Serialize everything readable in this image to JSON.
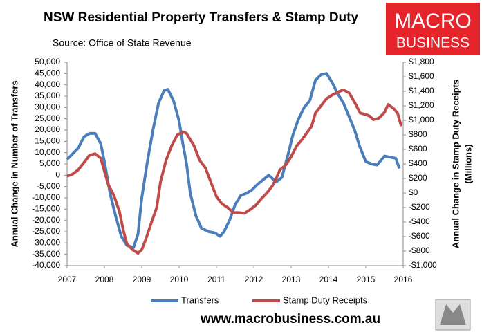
{
  "chart_data": {
    "type": "line",
    "title": "NSW Residential Property Transfers & Stamp Duty",
    "subtitle": "Source: Office of State Revenue",
    "y_label": "Annual Change in Number of Transfers",
    "y2_label": [
      "Annual Change in Stamp Duty Receipts",
      "(Millions)"
    ],
    "logo": [
      "MACRO",
      "BUSINESS"
    ],
    "footer": "www.macrobusiness.com.au",
    "xlim": [
      2007,
      2016
    ],
    "xticks": [
      2007,
      2008,
      2009,
      2010,
      2011,
      2012,
      2013,
      2014,
      2015,
      2016
    ],
    "ylim": [
      -40000,
      50000
    ],
    "yticks": [
      {
        "value": -40000,
        "label": "-40,000"
      },
      {
        "value": -35000,
        "label": "-35,000"
      },
      {
        "value": -30000,
        "label": "-30,000"
      },
      {
        "value": -25000,
        "label": "-25,000"
      },
      {
        "value": -20000,
        "label": "-20,000"
      },
      {
        "value": -15000,
        "label": "-15,000"
      },
      {
        "value": -10000,
        "label": "-10,000"
      },
      {
        "value": -5000,
        "label": "-5,000"
      },
      0,
      {
        "value": 5000,
        "label": "5,000"
      },
      {
        "value": 10000,
        "label": "10,000"
      },
      {
        "value": 15000,
        "label": "15,000"
      },
      {
        "value": 20000,
        "label": "20,000"
      },
      {
        "value": 25000,
        "label": "25,000"
      },
      {
        "value": 30000,
        "label": "30,000"
      },
      {
        "value": 35000,
        "label": "35,000"
      },
      {
        "value": 40000,
        "label": "40,000"
      },
      {
        "value": 45000,
        "label": "45,000"
      },
      {
        "value": 50000,
        "label": "50,000"
      }
    ],
    "y2lim": [
      -1000,
      1800
    ],
    "y2ticks": [
      {
        "value": -1000,
        "label": "-$1,000"
      },
      {
        "value": -800,
        "label": "-$800"
      },
      {
        "value": -600,
        "label": "-$600"
      },
      {
        "value": -400,
        "label": "-$400"
      },
      {
        "value": -200,
        "label": "-$200"
      },
      {
        "value": 0,
        "label": "$0"
      },
      {
        "value": 200,
        "label": "$200"
      },
      {
        "value": 400,
        "label": "$400"
      },
      {
        "value": 600,
        "label": "$600"
      },
      {
        "value": 800,
        "label": "$800"
      },
      {
        "value": 1000,
        "label": "$1,000"
      },
      {
        "value": 1200,
        "label": "$1,200"
      },
      {
        "value": 1400,
        "label": "$1,400"
      },
      {
        "value": 1600,
        "label": "$1,600"
      },
      {
        "value": 1800,
        "label": "$1,800"
      }
    ],
    "grid": false,
    "legend": "bottom",
    "series": [
      {
        "name": "Transfers",
        "color": "#4a7ebb",
        "axis": "y",
        "x": [
          2007.0,
          2007.15,
          2007.3,
          2007.45,
          2007.6,
          2007.75,
          2007.9,
          2008.0,
          2008.15,
          2008.3,
          2008.45,
          2008.6,
          2008.78,
          2008.9,
          2009.0,
          2009.15,
          2009.3,
          2009.45,
          2009.6,
          2009.7,
          2009.85,
          2010.0,
          2010.1,
          2010.2,
          2010.3,
          2010.45,
          2010.6,
          2010.8,
          2010.95,
          2011.1,
          2011.2,
          2011.35,
          2011.5,
          2011.65,
          2011.8,
          2011.95,
          2012.1,
          2012.25,
          2012.4,
          2012.6,
          2012.75,
          2012.9,
          2013.05,
          2013.2,
          2013.35,
          2013.5,
          2013.65,
          2013.8,
          2013.95,
          2014.1,
          2014.25,
          2014.4,
          2014.55,
          2014.7,
          2014.83,
          2015.0,
          2015.15,
          2015.3,
          2015.5,
          2015.65,
          2015.8,
          2015.9
        ],
        "values": [
          7000,
          9500,
          12000,
          17000,
          18500,
          18500,
          14000,
          6000,
          -8000,
          -18000,
          -27000,
          -31000,
          -32000,
          -26000,
          -10000,
          6000,
          20000,
          32000,
          37500,
          38000,
          33000,
          24000,
          14000,
          5000,
          -8000,
          -18000,
          -23500,
          -25000,
          -25500,
          -27000,
          -25000,
          -20000,
          -13000,
          -9000,
          -8000,
          -6500,
          -4000,
          -2000,
          0,
          -3000,
          -1000,
          8000,
          18000,
          25000,
          30000,
          33000,
          42000,
          44500,
          45000,
          41000,
          36000,
          32000,
          26000,
          20000,
          13000,
          6000,
          5000,
          4500,
          8500,
          8000,
          7500,
          3000
        ]
      },
      {
        "name": "Stamp Duty Receipts",
        "color": "#be4b48",
        "axis": "y2",
        "x": [
          2007.0,
          2007.15,
          2007.3,
          2007.5,
          2007.6,
          2007.75,
          2007.9,
          2008.0,
          2008.1,
          2008.25,
          2008.4,
          2008.5,
          2008.6,
          2008.75,
          2008.9,
          2009.0,
          2009.1,
          2009.25,
          2009.4,
          2009.5,
          2009.65,
          2009.8,
          2009.95,
          2010.1,
          2010.2,
          2010.4,
          2010.55,
          2010.7,
          2010.85,
          2011.0,
          2011.15,
          2011.3,
          2011.45,
          2011.6,
          2011.75,
          2011.9,
          2012.05,
          2012.2,
          2012.35,
          2012.5,
          2012.6,
          2012.7,
          2012.85,
          2013.0,
          2013.15,
          2013.3,
          2013.45,
          2013.55,
          2013.65,
          2013.8,
          2013.95,
          2014.1,
          2014.25,
          2014.4,
          2014.55,
          2014.7,
          2014.85,
          2015.0,
          2015.1,
          2015.2,
          2015.35,
          2015.5,
          2015.6,
          2015.75,
          2015.85,
          2015.95
        ],
        "values": [
          230,
          260,
          320,
          450,
          520,
          540,
          480,
          300,
          120,
          -30,
          -250,
          -500,
          -700,
          -780,
          -830,
          -780,
          -650,
          -420,
          -200,
          150,
          450,
          650,
          800,
          840,
          820,
          650,
          450,
          350,
          150,
          -50,
          -150,
          -200,
          -270,
          -270,
          -280,
          -230,
          -170,
          -80,
          0,
          100,
          200,
          320,
          380,
          500,
          650,
          740,
          850,
          920,
          1100,
          1200,
          1300,
          1350,
          1390,
          1420,
          1380,
          1250,
          1100,
          1080,
          1060,
          1010,
          1030,
          1110,
          1220,
          1160,
          1100,
          920
        ]
      }
    ]
  }
}
